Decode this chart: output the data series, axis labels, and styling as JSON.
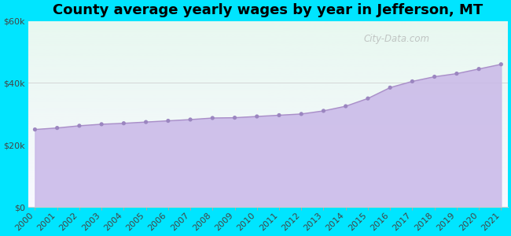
{
  "title": "County average yearly wages by year in Jefferson, MT",
  "years": [
    2000,
    2001,
    2002,
    2003,
    2004,
    2005,
    2006,
    2007,
    2008,
    2009,
    2010,
    2011,
    2012,
    2013,
    2014,
    2015,
    2016,
    2017,
    2018,
    2019,
    2020,
    2021
  ],
  "values": [
    25000,
    25500,
    26200,
    26700,
    27000,
    27400,
    27800,
    28200,
    28700,
    28800,
    29200,
    29600,
    30000,
    31000,
    32500,
    35000,
    38500,
    40500,
    42000,
    43000,
    44500,
    46000
  ],
  "line_color": "#a98fc8",
  "fill_color": "#c9b8e8",
  "fill_alpha": 0.85,
  "marker_color": "#9b86c0",
  "marker_size": 14,
  "background_color": "#00e5ff",
  "plot_bg_top_color": "#e8f8f0",
  "plot_bg_bottom_color": "#f8f8ff",
  "ylim": [
    0,
    60000
  ],
  "yticks": [
    0,
    20000,
    40000,
    60000
  ],
  "ytick_labels": [
    "$0",
    "$20k",
    "$40k",
    "$60k"
  ],
  "grid_color": "#d0d0d0",
  "watermark": "City-Data.com",
  "title_fontsize": 13,
  "tick_fontsize": 8,
  "bottom_spine_color": "#cccccc"
}
